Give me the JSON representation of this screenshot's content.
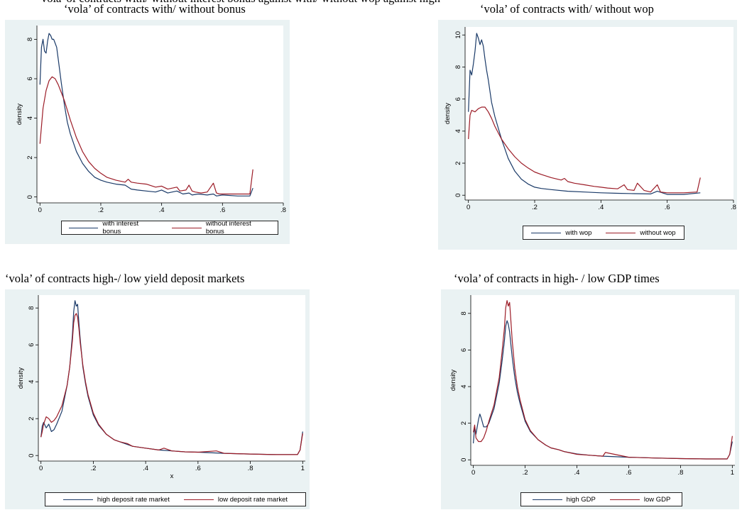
{
  "colors": {
    "series1": "#1a3a68",
    "series2": "#9c1c27",
    "panel_bg": "#eaf2f3"
  },
  "header": {
    "cut_text": "'vola' of contracts with/ without interest bonus against with/ without wop against high"
  },
  "chart_data": [
    {
      "type": "line",
      "title": "‘vola’ of contracts with/ without bonus",
      "xlabel": "",
      "ylabel": "density",
      "xlim": [
        -0.01,
        0.8
      ],
      "ylim": [
        -0.3,
        8.7
      ],
      "xticks": [
        0,
        0.2,
        0.4,
        0.6,
        0.8
      ],
      "xtick_labels": [
        "0",
        ".2",
        ".4",
        ".6",
        ".8"
      ],
      "yticks": [
        0,
        2,
        4,
        6,
        8
      ],
      "ytick_labels": [
        "0",
        "2",
        "4",
        "6",
        "8"
      ],
      "legend_position": "bottom",
      "series": [
        {
          "name": "with interest bonus",
          "color": "#1a3a68",
          "x": [
            0,
            0.005,
            0.01,
            0.015,
            0.02,
            0.025,
            0.03,
            0.035,
            0.04,
            0.045,
            0.05,
            0.055,
            0.06,
            0.07,
            0.08,
            0.09,
            0.1,
            0.12,
            0.14,
            0.16,
            0.18,
            0.2,
            0.22,
            0.25,
            0.28,
            0.3,
            0.32,
            0.35,
            0.38,
            0.4,
            0.42,
            0.45,
            0.47,
            0.49,
            0.5,
            0.52,
            0.55,
            0.57,
            0.58,
            0.6,
            0.65,
            0.69,
            0.7
          ],
          "y": [
            5.7,
            7.6,
            8.0,
            7.4,
            7.3,
            7.9,
            8.3,
            8.2,
            8.0,
            8.0,
            7.8,
            7.6,
            7.0,
            5.8,
            4.7,
            3.8,
            3.2,
            2.3,
            1.7,
            1.3,
            1.0,
            0.85,
            0.75,
            0.65,
            0.6,
            0.4,
            0.35,
            0.3,
            0.25,
            0.35,
            0.2,
            0.3,
            0.15,
            0.2,
            0.1,
            0.15,
            0.1,
            0.15,
            0.05,
            0.1,
            0.05,
            0.05,
            0.45
          ]
        },
        {
          "name": "without interest bonus",
          "color": "#9c1c27",
          "x": [
            0,
            0.01,
            0.02,
            0.03,
            0.04,
            0.05,
            0.06,
            0.07,
            0.08,
            0.1,
            0.12,
            0.14,
            0.16,
            0.18,
            0.2,
            0.22,
            0.25,
            0.28,
            0.29,
            0.3,
            0.32,
            0.35,
            0.38,
            0.4,
            0.42,
            0.45,
            0.46,
            0.48,
            0.49,
            0.5,
            0.51,
            0.53,
            0.55,
            0.57,
            0.58,
            0.59,
            0.62,
            0.65,
            0.69,
            0.7
          ],
          "y": [
            2.7,
            4.5,
            5.4,
            5.9,
            6.1,
            6.0,
            5.7,
            5.3,
            4.9,
            3.9,
            3.0,
            2.3,
            1.8,
            1.45,
            1.2,
            1.0,
            0.85,
            0.75,
            0.9,
            0.75,
            0.7,
            0.65,
            0.5,
            0.55,
            0.4,
            0.5,
            0.3,
            0.35,
            0.6,
            0.3,
            0.25,
            0.2,
            0.25,
            0.7,
            0.2,
            0.15,
            0.15,
            0.15,
            0.15,
            1.4
          ]
        }
      ]
    },
    {
      "type": "line",
      "title": "‘vola’ of contracts with/ without wop",
      "xlabel": "",
      "ylabel": "density",
      "xlim": [
        -0.01,
        0.8
      ],
      "ylim": [
        -0.3,
        10.5
      ],
      "xticks": [
        0,
        0.2,
        0.4,
        0.6,
        0.8
      ],
      "xtick_labels": [
        "0",
        ".2",
        ".4",
        ".6",
        ".8"
      ],
      "yticks": [
        0,
        2,
        4,
        6,
        8,
        10
      ],
      "ytick_labels": [
        "0",
        "2",
        "4",
        "6",
        "8",
        "10"
      ],
      "legend_position": "bottom",
      "series": [
        {
          "name": "with wop",
          "color": "#1a3a68",
          "x": [
            0,
            0.005,
            0.01,
            0.015,
            0.02,
            0.025,
            0.03,
            0.035,
            0.04,
            0.045,
            0.05,
            0.055,
            0.06,
            0.07,
            0.08,
            0.1,
            0.12,
            0.14,
            0.16,
            0.18,
            0.2,
            0.22,
            0.25,
            0.3,
            0.35,
            0.4,
            0.45,
            0.5,
            0.55,
            0.57,
            0.6,
            0.65,
            0.7
          ],
          "y": [
            5.2,
            7.8,
            7.5,
            8.2,
            9.0,
            10.1,
            9.8,
            9.4,
            9.7,
            9.3,
            8.5,
            7.8,
            7.2,
            5.8,
            4.9,
            3.5,
            2.3,
            1.5,
            1.0,
            0.7,
            0.5,
            0.42,
            0.35,
            0.25,
            0.2,
            0.15,
            0.12,
            0.1,
            0.08,
            0.25,
            0.05,
            0.05,
            0.15
          ]
        },
        {
          "name": "without wop",
          "color": "#9c1c27",
          "x": [
            0,
            0.005,
            0.01,
            0.02,
            0.03,
            0.04,
            0.05,
            0.06,
            0.07,
            0.08,
            0.1,
            0.12,
            0.14,
            0.16,
            0.18,
            0.2,
            0.22,
            0.25,
            0.28,
            0.29,
            0.3,
            0.32,
            0.35,
            0.38,
            0.4,
            0.42,
            0.45,
            0.47,
            0.48,
            0.5,
            0.51,
            0.53,
            0.55,
            0.57,
            0.58,
            0.6,
            0.65,
            0.69,
            0.7
          ],
          "y": [
            3.5,
            5.0,
            5.3,
            5.2,
            5.4,
            5.5,
            5.5,
            5.2,
            4.8,
            4.3,
            3.5,
            2.9,
            2.4,
            2.0,
            1.7,
            1.45,
            1.3,
            1.1,
            0.95,
            1.05,
            0.85,
            0.75,
            0.65,
            0.55,
            0.5,
            0.45,
            0.4,
            0.65,
            0.35,
            0.3,
            0.75,
            0.3,
            0.2,
            0.65,
            0.2,
            0.15,
            0.15,
            0.2,
            1.1
          ]
        }
      ]
    },
    {
      "type": "line",
      "title": "‘vola’ of contracts high-/ low yield deposit markets",
      "xlabel": "x",
      "ylabel": "density",
      "xlim": [
        -0.01,
        1.01
      ],
      "ylim": [
        -0.3,
        8.7
      ],
      "xticks": [
        0,
        0.2,
        0.4,
        0.6,
        0.8,
        1
      ],
      "xtick_labels": [
        "0",
        ".2",
        ".4",
        ".6",
        ".8",
        "1"
      ],
      "yticks": [
        0,
        2,
        4,
        6,
        8
      ],
      "ytick_labels": [
        "0",
        "2",
        "4",
        "6",
        "8"
      ],
      "legend_position": "bottom",
      "series": [
        {
          "name": "high deposit rate market",
          "color": "#1a3a68",
          "x": [
            0,
            0.005,
            0.01,
            0.02,
            0.03,
            0.04,
            0.05,
            0.06,
            0.08,
            0.1,
            0.11,
            0.12,
            0.125,
            0.13,
            0.135,
            0.14,
            0.145,
            0.15,
            0.16,
            0.17,
            0.18,
            0.2,
            0.22,
            0.25,
            0.28,
            0.3,
            0.33,
            0.35,
            0.4,
            0.45,
            0.5,
            0.55,
            0.6,
            0.7,
            0.8,
            0.9,
            0.98,
            0.99,
            1.0
          ],
          "y": [
            1.0,
            1.6,
            1.8,
            1.5,
            1.7,
            1.3,
            1.4,
            1.7,
            2.4,
            3.8,
            4.8,
            6.5,
            7.8,
            8.4,
            8.1,
            8.2,
            7.2,
            6.3,
            4.8,
            3.9,
            3.2,
            2.2,
            1.65,
            1.15,
            0.85,
            0.75,
            0.6,
            0.5,
            0.4,
            0.3,
            0.25,
            0.2,
            0.18,
            0.12,
            0.08,
            0.05,
            0.05,
            0.3,
            1.3
          ]
        },
        {
          "name": "low deposit rate market",
          "color": "#9c1c27",
          "x": [
            0,
            0.005,
            0.01,
            0.02,
            0.03,
            0.04,
            0.05,
            0.06,
            0.08,
            0.1,
            0.11,
            0.12,
            0.125,
            0.13,
            0.135,
            0.14,
            0.145,
            0.15,
            0.16,
            0.17,
            0.18,
            0.2,
            0.22,
            0.25,
            0.28,
            0.3,
            0.33,
            0.35,
            0.4,
            0.45,
            0.47,
            0.5,
            0.55,
            0.6,
            0.67,
            0.7,
            0.8,
            0.9,
            0.98,
            0.99,
            1.0
          ],
          "y": [
            1.0,
            1.3,
            1.7,
            2.1,
            2.0,
            1.8,
            1.9,
            2.1,
            2.7,
            3.8,
            4.8,
            6.2,
            7.2,
            7.6,
            7.7,
            7.5,
            6.9,
            6.1,
            4.9,
            4.0,
            3.3,
            2.3,
            1.7,
            1.15,
            0.85,
            0.75,
            0.65,
            0.5,
            0.4,
            0.3,
            0.4,
            0.25,
            0.2,
            0.18,
            0.25,
            0.12,
            0.08,
            0.05,
            0.05,
            0.3,
            1.2
          ]
        }
      ]
    },
    {
      "type": "line",
      "title": "‘vola’ of contracts in high- / low GDP times",
      "xlabel": "",
      "ylabel": "density",
      "xlim": [
        -0.01,
        1.01
      ],
      "ylim": [
        -0.3,
        9.0
      ],
      "xticks": [
        0,
        0.2,
        0.4,
        0.6,
        0.8,
        1
      ],
      "xtick_labels": [
        "0",
        ".2",
        ".4",
        ".6",
        ".8",
        "1"
      ],
      "yticks": [
        0,
        2,
        4,
        6,
        8
      ],
      "ytick_labels": [
        "0",
        "2",
        "4",
        "6",
        "8"
      ],
      "legend_position": "bottom",
      "series": [
        {
          "name": "high GDP",
          "color": "#1a3a68",
          "x": [
            0,
            0.005,
            0.01,
            0.02,
            0.025,
            0.03,
            0.04,
            0.05,
            0.06,
            0.08,
            0.1,
            0.11,
            0.12,
            0.125,
            0.13,
            0.135,
            0.14,
            0.145,
            0.15,
            0.16,
            0.17,
            0.18,
            0.2,
            0.22,
            0.25,
            0.28,
            0.3,
            0.33,
            0.35,
            0.4,
            0.45,
            0.5,
            0.6,
            0.7,
            0.8,
            0.9,
            0.98,
            0.99,
            1.0
          ],
          "y": [
            0.9,
            1.8,
            1.4,
            2.2,
            2.5,
            2.3,
            1.8,
            1.8,
            2.0,
            2.8,
            4.2,
            5.3,
            6.5,
            7.3,
            7.6,
            7.4,
            7.0,
            6.3,
            5.6,
            4.5,
            3.7,
            3.1,
            2.1,
            1.55,
            1.1,
            0.8,
            0.65,
            0.55,
            0.45,
            0.32,
            0.25,
            0.2,
            0.14,
            0.1,
            0.07,
            0.05,
            0.05,
            0.3,
            1.0
          ]
        },
        {
          "name": "low GDP",
          "color": "#9c1c27",
          "x": [
            0,
            0.005,
            0.01,
            0.02,
            0.03,
            0.04,
            0.05,
            0.06,
            0.08,
            0.1,
            0.11,
            0.12,
            0.125,
            0.13,
            0.135,
            0.14,
            0.145,
            0.15,
            0.16,
            0.17,
            0.18,
            0.2,
            0.22,
            0.25,
            0.28,
            0.3,
            0.33,
            0.35,
            0.4,
            0.45,
            0.5,
            0.51,
            0.6,
            0.7,
            0.8,
            0.9,
            0.98,
            0.99,
            1.0
          ],
          "y": [
            1.5,
            1.9,
            1.2,
            1.0,
            1.0,
            1.2,
            1.6,
            2.1,
            3.0,
            4.5,
            5.8,
            7.2,
            8.3,
            8.7,
            8.4,
            8.6,
            7.6,
            6.5,
            5.0,
            4.0,
            3.3,
            2.2,
            1.6,
            1.1,
            0.8,
            0.65,
            0.55,
            0.45,
            0.3,
            0.25,
            0.2,
            0.4,
            0.14,
            0.1,
            0.07,
            0.05,
            0.05,
            0.3,
            1.3
          ]
        }
      ]
    }
  ]
}
